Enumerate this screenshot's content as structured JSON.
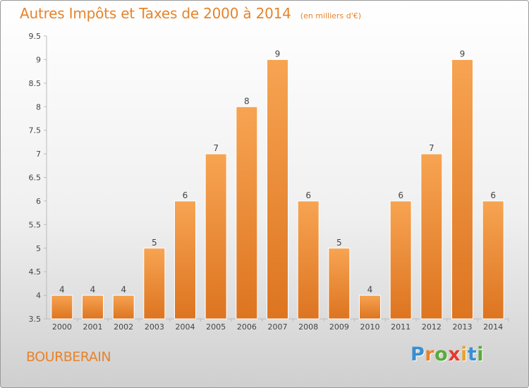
{
  "chart_data": {
    "type": "bar",
    "title": "Autres Impôts et Taxes de 2000 à 2014",
    "unit_note": "(en milliers d'€)",
    "categories": [
      "2000",
      "2001",
      "2002",
      "2003",
      "2004",
      "2005",
      "2006",
      "2007",
      "2008",
      "2009",
      "2010",
      "2011",
      "2012",
      "2013",
      "2014"
    ],
    "values": [
      4,
      4,
      4,
      5,
      6,
      7,
      8,
      9,
      6,
      5,
      4,
      6,
      7,
      9,
      6
    ],
    "ylim": [
      3.5,
      9.5
    ],
    "yticks": [
      "3.5",
      "4",
      "4.5",
      "5",
      "5.5",
      "6",
      "6.5",
      "7",
      "7.5",
      "8",
      "8.5",
      "9",
      "9.5"
    ],
    "grid": false,
    "bar_color": "#f08a2c"
  },
  "footer": {
    "town": "BOURBERAIN",
    "logo_letters": [
      {
        "ch": "P",
        "color": "#3a8fd0"
      },
      {
        "ch": "r",
        "color": "#e8832a"
      },
      {
        "ch": "o",
        "color": "#5aaa3c"
      },
      {
        "ch": "x",
        "color": "#e63b2e"
      },
      {
        "ch": "i",
        "color": "#e8a32a"
      },
      {
        "ch": "t",
        "color": "#3a8fd0"
      },
      {
        "ch": "i",
        "color": "#5aaa3c"
      }
    ]
  }
}
